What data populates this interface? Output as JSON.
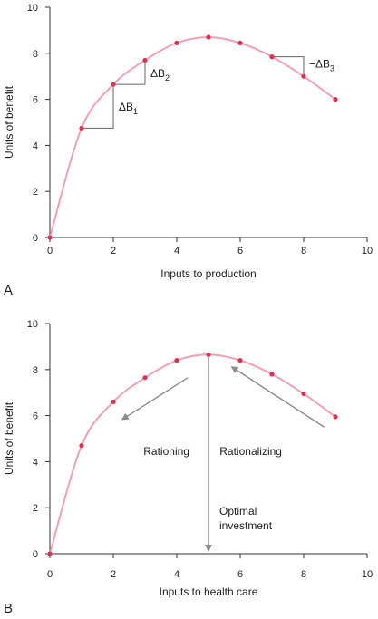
{
  "colors": {
    "curve": "#f2a1b4",
    "point": "#e0304f",
    "arrow": "#8a8a8a",
    "axis": "#333333",
    "text": "#222222"
  },
  "chart_data": [
    {
      "type": "line",
      "panel_label": "A",
      "xlabel": "Inputs to production",
      "ylabel": "Units of benefit",
      "xlim": [
        0,
        10
      ],
      "ylim": [
        0,
        10
      ],
      "x_ticks": [
        0,
        2,
        4,
        6,
        8,
        10
      ],
      "y_ticks": [
        0,
        2,
        4,
        6,
        8,
        10
      ],
      "grid": false,
      "series": [
        {
          "x": [
            0,
            1,
            2,
            3,
            4,
            5,
            6,
            7,
            8,
            9
          ],
          "y": [
            0,
            4.75,
            6.65,
            7.7,
            8.45,
            8.7,
            8.45,
            7.85,
            7.0,
            6.0
          ]
        }
      ],
      "annotations": [
        {
          "text": "ΔB",
          "sub": "1",
          "x_from": 1,
          "x_to": 2
        },
        {
          "text": "ΔB",
          "sub": "2",
          "x_from": 2,
          "x_to": 3
        },
        {
          "text": "−ΔB",
          "sub": "3",
          "x_from": 7,
          "x_to": 8
        }
      ]
    },
    {
      "type": "line",
      "panel_label": "B",
      "xlabel": "Inputs to health care",
      "ylabel": "Units of benefit",
      "xlim": [
        0,
        10
      ],
      "ylim": [
        0,
        10
      ],
      "x_ticks": [
        0,
        2,
        4,
        6,
        8,
        10
      ],
      "y_ticks": [
        0,
        2,
        4,
        6,
        8,
        10
      ],
      "grid": false,
      "series": [
        {
          "x": [
            0,
            1,
            2,
            3,
            4,
            5,
            6,
            7,
            8,
            9
          ],
          "y": [
            0,
            4.7,
            6.6,
            7.65,
            8.4,
            8.65,
            8.4,
            7.8,
            6.95,
            5.95
          ]
        }
      ],
      "annotations": [
        {
          "text": "Rationing"
        },
        {
          "text": "Rationalizing"
        },
        {
          "text": "Optimal",
          "text2": "investment",
          "x": 5
        }
      ]
    }
  ]
}
